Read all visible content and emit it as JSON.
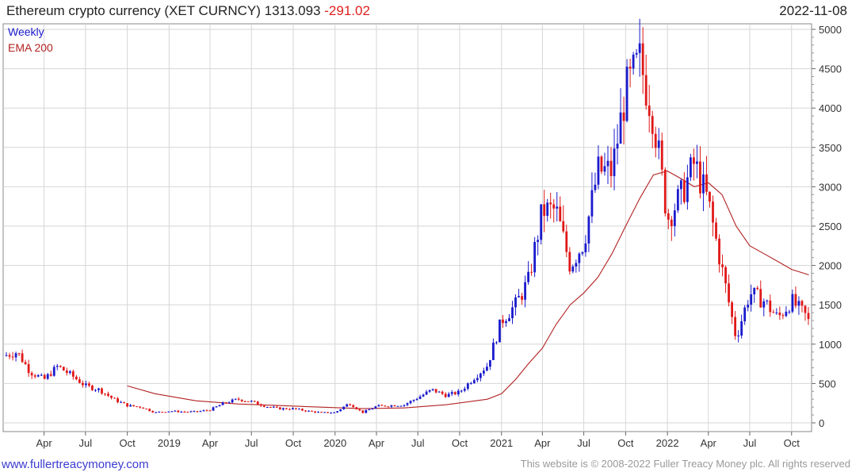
{
  "header": {
    "title": "Ethereum crypto currency  (XET CURNCY)",
    "last": "1313.093",
    "change": "-291.02",
    "date": "2022-11-08"
  },
  "legend": {
    "weekly": "Weekly",
    "ema": "EMA 200"
  },
  "footer": {
    "left": "www.fullertreacymoney.com",
    "right": "This website is © 2008-2022 Fuller Treacy Money plc. All rights reserved"
  },
  "colors": {
    "up": "#1a1acd",
    "down": "#e01818",
    "ema": "#b22222",
    "grid": "#d6d6d6"
  },
  "chart_data": {
    "type": "candlestick",
    "title": "Ethereum crypto currency (XET CURNCY)",
    "ylim": [
      0,
      5000
    ],
    "y_ticks": [
      0,
      500,
      1000,
      1500,
      2000,
      2500,
      3000,
      3500,
      4000,
      4500,
      5000
    ],
    "x_tick_labels": [
      "Apr",
      "Jul",
      "Oct",
      "2019",
      "Apr",
      "Jul",
      "Oct",
      "2020",
      "Apr",
      "Jul",
      "Oct",
      "2021",
      "Apr",
      "Jul",
      "Oct",
      "2022",
      "Apr",
      "Jul",
      "Oct"
    ],
    "x_range": [
      "2018-01-01",
      "2022-11-14"
    ],
    "grid": true,
    "legend_placement": "top-left",
    "price_series": {
      "name": "Weekly",
      "x": [
        "2018-01-01",
        "2018-02-01",
        "2018-03-01",
        "2018-04-01",
        "2018-05-01",
        "2018-06-01",
        "2018-07-01",
        "2018-08-01",
        "2018-09-01",
        "2018-10-01",
        "2018-11-01",
        "2018-12-01",
        "2019-01-01",
        "2019-02-01",
        "2019-03-01",
        "2019-04-01",
        "2019-05-01",
        "2019-06-01",
        "2019-07-01",
        "2019-08-01",
        "2019-09-01",
        "2019-10-01",
        "2019-11-01",
        "2019-12-01",
        "2020-01-01",
        "2020-02-01",
        "2020-03-01",
        "2020-04-01",
        "2020-05-01",
        "2020-06-01",
        "2020-07-01",
        "2020-08-01",
        "2020-09-01",
        "2020-10-01",
        "2020-11-01",
        "2020-12-01",
        "2021-01-01",
        "2021-02-01",
        "2021-03-01",
        "2021-04-01",
        "2021-05-01",
        "2021-06-01",
        "2021-07-01",
        "2021-08-01",
        "2021-09-01",
        "2021-10-01",
        "2021-11-01",
        "2021-12-01",
        "2022-01-01",
        "2022-02-01",
        "2022-03-01",
        "2022-04-01",
        "2022-05-01",
        "2022-06-01",
        "2022-07-01",
        "2022-08-01",
        "2022-09-01",
        "2022-10-01",
        "2022-11-08"
      ],
      "close": [
        850,
        900,
        650,
        550,
        720,
        600,
        470,
        420,
        300,
        220,
        200,
        130,
        150,
        140,
        140,
        165,
        250,
        300,
        270,
        210,
        180,
        180,
        150,
        130,
        130,
        250,
        130,
        210,
        220,
        230,
        320,
        420,
        350,
        390,
        570,
        730,
        1300,
        1500,
        1800,
        2700,
        2700,
        2000,
        2300,
        3200,
        3200,
        4200,
        4600,
        3900,
        2600,
        2900,
        3300,
        2800,
        1950,
        1080,
        1650,
        1550,
        1330,
        1550,
        1313
      ]
    },
    "ema_series": {
      "name": "EMA 200",
      "x": [
        "2018-10-01",
        "2018-12-01",
        "2019-03-01",
        "2019-06-01",
        "2019-09-01",
        "2019-12-01",
        "2020-03-01",
        "2020-06-01",
        "2020-09-01",
        "2020-12-01",
        "2021-01-01",
        "2021-02-01",
        "2021-03-01",
        "2021-04-01",
        "2021-05-01",
        "2021-06-01",
        "2021-07-01",
        "2021-08-01",
        "2021-09-01",
        "2021-10-01",
        "2021-11-01",
        "2021-12-01",
        "2022-01-01",
        "2022-02-01",
        "2022-03-01",
        "2022-04-01",
        "2022-05-01",
        "2022-06-01",
        "2022-07-01",
        "2022-08-01",
        "2022-09-01",
        "2022-10-01",
        "2022-11-08"
      ],
      "values": [
        470,
        370,
        280,
        240,
        220,
        200,
        180,
        190,
        230,
        300,
        370,
        550,
        750,
        950,
        1250,
        1500,
        1650,
        1850,
        2150,
        2500,
        2850,
        3150,
        3200,
        3100,
        3000,
        3050,
        2900,
        2500,
        2250,
        2150,
        2050,
        1950,
        1880
      ]
    }
  }
}
